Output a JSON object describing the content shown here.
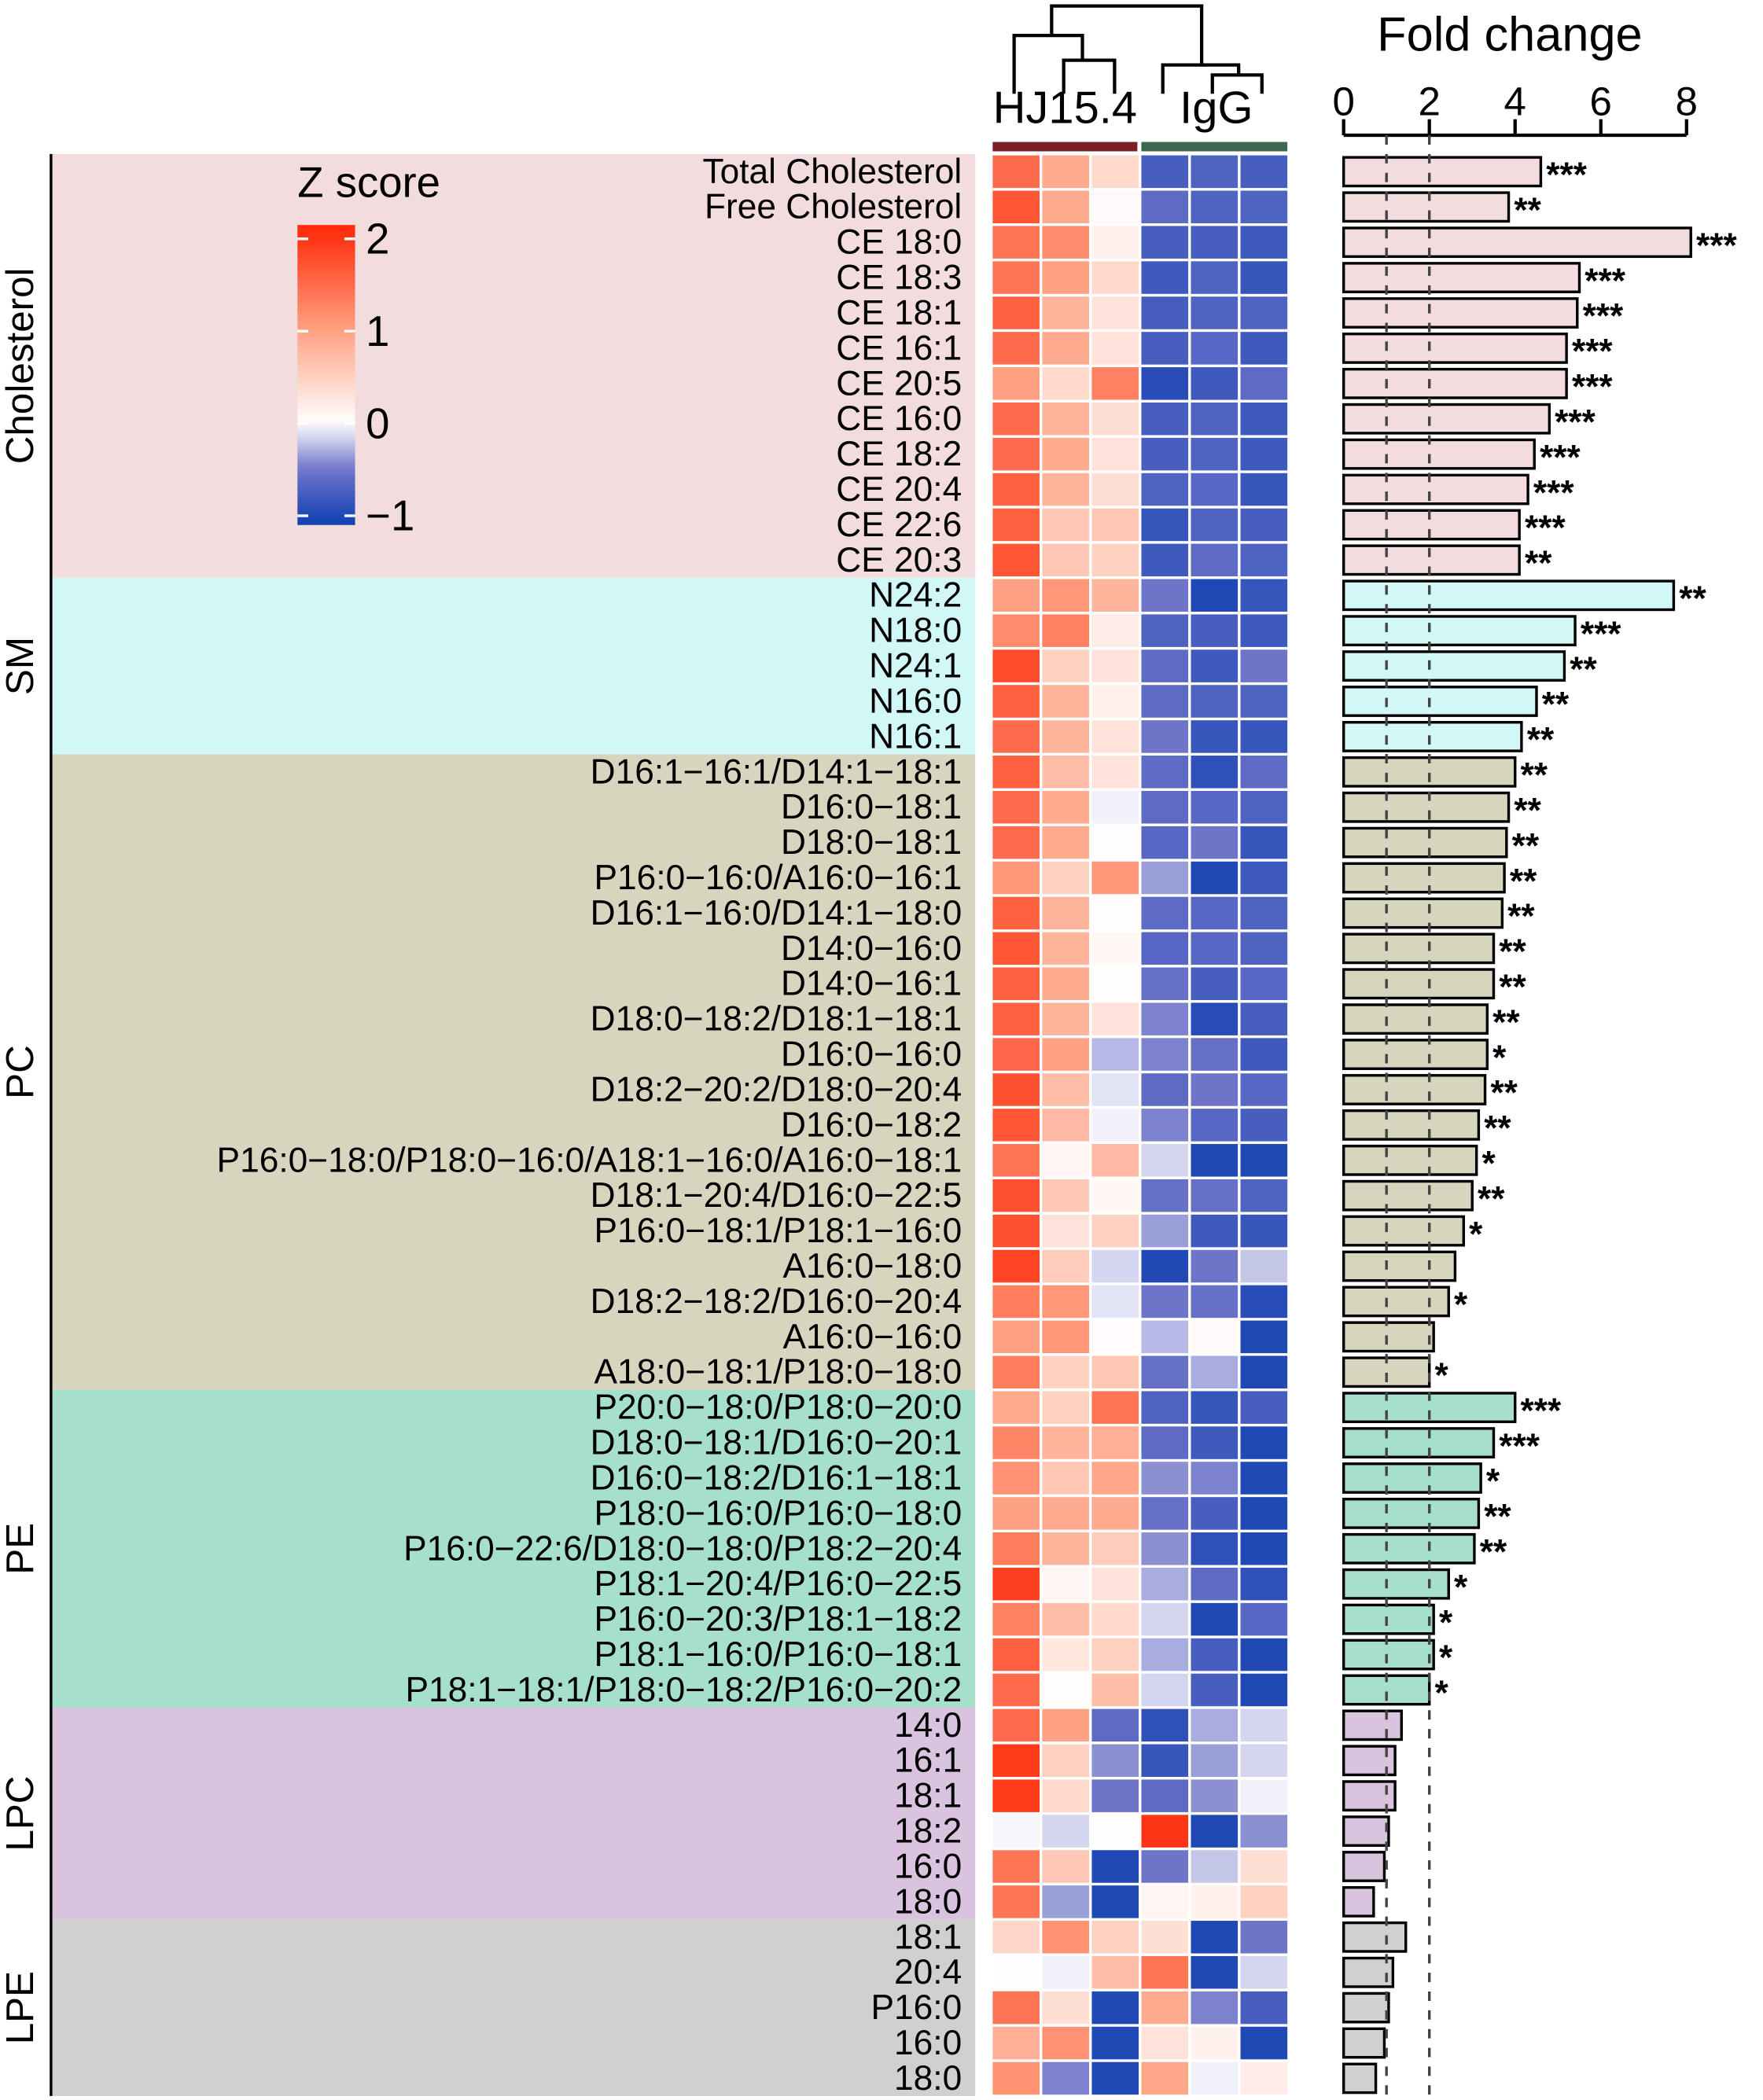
{
  "chart_data": [
    {
      "type": "heatmap",
      "title": "",
      "column_groups": [
        {
          "label": "HJ15.4",
          "color": "#7a1f24",
          "n": 3
        },
        {
          "label": "IgG",
          "color": "#3e6650",
          "n": 3
        }
      ],
      "dendrogram": "columns clustered: HJ15.4 (1,(2,3)), IgG (4,(5,6))",
      "legend": {
        "title": "Z score",
        "ticks": [
          "2",
          "1",
          "0",
          "−1"
        ],
        "tick_values": [
          2,
          1,
          0,
          -1
        ],
        "range": [
          -1.1,
          2.15
        ],
        "colors": [
          "#1040b2",
          "#6e74c8",
          "#ffffff",
          "#ffa283",
          "#ff2a0a"
        ]
      },
      "groups": [
        {
          "label": "Cholesterol",
          "color": "#f2dcdd",
          "rows": [
            {
              "label": "Total Cholesterol",
              "z": [
                1.5,
                0.9,
                0.4,
                -0.75,
                -0.7,
                -0.75
              ]
            },
            {
              "label": "Free Cholesterol",
              "z": [
                1.7,
                0.9,
                0.05,
                -0.6,
                -0.7,
                -0.7
              ]
            },
            {
              "label": "CE 18:0",
              "z": [
                1.4,
                1.2,
                0.15,
                -0.75,
                -0.75,
                -0.8
              ]
            },
            {
              "label": "CE 18:3",
              "z": [
                1.4,
                1.0,
                0.4,
                -0.8,
                -0.7,
                -0.85
              ]
            },
            {
              "label": "CE 18:1",
              "z": [
                1.6,
                0.8,
                0.3,
                -0.75,
                -0.7,
                -0.7
              ]
            },
            {
              "label": "CE 16:1",
              "z": [
                1.5,
                0.9,
                0.3,
                -0.75,
                -0.65,
                -0.8
              ]
            },
            {
              "label": "CE 20:5",
              "z": [
                1.0,
                0.4,
                1.3,
                -0.95,
                -0.8,
                -0.6
              ]
            },
            {
              "label": "CE 16:0",
              "z": [
                1.5,
                0.8,
                0.35,
                -0.75,
                -0.7,
                -0.8
              ]
            },
            {
              "label": "CE 18:2",
              "z": [
                1.5,
                0.9,
                0.3,
                -0.75,
                -0.7,
                -0.8
              ]
            },
            {
              "label": "CE 20:4",
              "z": [
                1.6,
                0.8,
                0.35,
                -0.7,
                -0.65,
                -0.85
              ]
            },
            {
              "label": "CE 22:6",
              "z": [
                1.6,
                0.6,
                0.6,
                -0.85,
                -0.7,
                -0.75
              ]
            },
            {
              "label": "CE 20:3",
              "z": [
                1.7,
                0.6,
                0.5,
                -0.8,
                -0.6,
                -0.7
              ]
            }
          ]
        },
        {
          "label": "SM",
          "color": "#d1f7f6",
          "rows": [
            {
              "label": "N24:2",
              "z": [
                1.0,
                1.1,
                0.8,
                -0.5,
                -1.0,
                -0.85
              ]
            },
            {
              "label": "N18:0",
              "z": [
                1.2,
                1.3,
                0.2,
                -0.7,
                -0.75,
                -0.8
              ]
            },
            {
              "label": "N24:1",
              "z": [
                1.8,
                0.5,
                0.3,
                -0.6,
                -0.8,
                -0.5
              ]
            },
            {
              "label": "N16:0",
              "z": [
                1.6,
                0.8,
                0.15,
                -0.6,
                -0.7,
                -0.7
              ]
            },
            {
              "label": "N16:1",
              "z": [
                1.5,
                0.8,
                0.3,
                -0.5,
                -0.85,
                -0.85
              ]
            }
          ]
        },
        {
          "label": "PC",
          "color": "#d8d5bf",
          "rows": [
            {
              "label": "D16:1−16:1/D14:1−18:1",
              "z": [
                1.6,
                0.7,
                0.3,
                -0.6,
                -0.9,
                -0.6
              ]
            },
            {
              "label": "D16:0−18:1",
              "z": [
                1.5,
                0.9,
                -0.05,
                -0.6,
                -0.65,
                -0.7
              ]
            },
            {
              "label": "D18:0−18:1",
              "z": [
                1.5,
                0.9,
                0.02,
                -0.65,
                -0.5,
                -0.85
              ]
            },
            {
              "label": "P16:0−16:0/A16:0−16:1",
              "z": [
                1.1,
                0.5,
                1.1,
                -0.35,
                -1.0,
                -0.8
              ]
            },
            {
              "label": "D16:1−16:0/D14:1−18:0",
              "z": [
                1.6,
                0.8,
                0.02,
                -0.6,
                -0.65,
                -0.7
              ]
            },
            {
              "label": "D14:0−16:0",
              "z": [
                1.7,
                0.8,
                0.08,
                -0.65,
                -0.65,
                -0.7
              ]
            },
            {
              "label": "D14:0−16:1",
              "z": [
                1.6,
                0.9,
                0.02,
                -0.55,
                -0.75,
                -0.65
              ]
            },
            {
              "label": "D18:0−18:2/D18:1−18:1",
              "z": [
                1.6,
                0.8,
                0.3,
                -0.45,
                -0.95,
                -0.75
              ]
            },
            {
              "label": "D16:0−16:0",
              "z": [
                1.55,
                1.0,
                -0.25,
                -0.45,
                -0.55,
                -0.8
              ]
            },
            {
              "label": "D18:2−20:2/D18:0−20:4",
              "z": [
                1.75,
                0.7,
                -0.1,
                -0.6,
                -0.5,
                -0.65
              ]
            },
            {
              "label": "D16:0−18:2",
              "z": [
                1.7,
                0.75,
                -0.05,
                -0.45,
                -0.65,
                -0.75
              ]
            },
            {
              "label": "P16:0−18:0/P18:0−16:0/A18:1−16:0/A16:0−18:1",
              "z": [
                1.4,
                0.1,
                0.75,
                -0.15,
                -1.0,
                -1.0
              ]
            },
            {
              "label": "D18:1−20:4/D16:0−22:5",
              "z": [
                1.75,
                0.6,
                0.08,
                -0.55,
                -0.55,
                -0.7
              ]
            },
            {
              "label": "P16:0−18:1/P18:1−16:0",
              "z": [
                1.75,
                0.3,
                0.5,
                -0.35,
                -0.8,
                -0.85
              ]
            },
            {
              "label": "A16:0−18:0",
              "z": [
                1.85,
                0.55,
                -0.15,
                -1.0,
                -0.5,
                -0.2
              ]
            },
            {
              "label": "D18:2−18:2/D16:0−20:4",
              "z": [
                1.35,
                1.1,
                -0.1,
                -0.5,
                -0.55,
                -0.95
              ]
            },
            {
              "label": "A16:0−16:0",
              "z": [
                1.0,
                1.1,
                0.03,
                -0.25,
                0.05,
                -1.0
              ]
            },
            {
              "label": "A18:0−18:1/P18:0−18:0",
              "z": [
                1.35,
                0.5,
                0.6,
                -0.55,
                -0.3,
                -1.0
              ]
            }
          ]
        },
        {
          "label": "PE",
          "color": "#a6e0cb",
          "rows": [
            {
              "label": "P20:0−18:0/P18:0−20:0",
              "z": [
                0.9,
                0.5,
                1.4,
                -0.7,
                -0.85,
                -0.75
              ]
            },
            {
              "label": "D18:0−18:1/D16:0−20:1",
              "z": [
                1.25,
                0.8,
                0.85,
                -0.6,
                -0.8,
                -1.0
              ]
            },
            {
              "label": "D16:0−18:2/D16:1−18:1",
              "z": [
                1.15,
                0.6,
                0.95,
                -0.4,
                -0.45,
                -1.0
              ]
            },
            {
              "label": "P18:0−16:0/P16:0−18:0",
              "z": [
                1.0,
                0.9,
                0.9,
                -0.55,
                -0.75,
                -1.0
              ]
            },
            {
              "label": "P16:0−22:6/D18:0−18:0/P18:2−20:4",
              "z": [
                1.35,
                0.8,
                0.55,
                -0.4,
                -0.9,
                -1.0
              ]
            },
            {
              "label": "P18:1−20:4/P16:0−22:5",
              "z": [
                1.9,
                0.1,
                0.3,
                -0.3,
                -0.6,
                -0.9
              ]
            },
            {
              "label": "P16:0−20:3/P18:1−18:2",
              "z": [
                1.3,
                0.7,
                0.4,
                -0.15,
                -1.0,
                -0.65
              ]
            },
            {
              "label": "P18:1−16:0/P16:0−18:1",
              "z": [
                1.6,
                0.25,
                0.5,
                -0.3,
                -0.75,
                -1.0
              ]
            },
            {
              "label": "P18:1−18:1/P18:0−18:2/P16:0−20:2",
              "z": [
                1.5,
                0.02,
                0.7,
                -0.15,
                -0.75,
                -1.0
              ]
            }
          ]
        },
        {
          "label": "LPC",
          "color": "#d9c3de",
          "rows": [
            {
              "label": "14:0",
              "z": [
                1.5,
                1.0,
                -0.6,
                -0.9,
                -0.3,
                -0.15
              ]
            },
            {
              "label": "16:1",
              "z": [
                1.95,
                0.5,
                -0.4,
                -0.85,
                -0.35,
                -0.15
              ]
            },
            {
              "label": "18:1",
              "z": [
                1.95,
                0.4,
                -0.5,
                -0.6,
                -0.4,
                -0.05
              ]
            },
            {
              "label": "18:2",
              "z": [
                -0.03,
                -0.15,
                0.02,
                2.0,
                -1.0,
                -0.4
              ]
            },
            {
              "label": "16:0",
              "z": [
                1.4,
                0.6,
                -1.0,
                -0.5,
                -0.2,
                0.35
              ]
            },
            {
              "label": "18:0",
              "z": [
                1.4,
                -0.35,
                -1.0,
                0.1,
                0.15,
                0.5
              ]
            }
          ]
        },
        {
          "label": "LPE",
          "color": "#d0d0d0",
          "rows": [
            {
              "label": "18:1",
              "z": [
                0.45,
                1.15,
                0.5,
                0.35,
                -1.0,
                -0.5
              ]
            },
            {
              "label": "20:4",
              "z": [
                0.02,
                -0.05,
                0.7,
                1.4,
                -1.0,
                -0.15
              ]
            },
            {
              "label": "P16:0",
              "z": [
                1.4,
                0.35,
                -1.0,
                0.9,
                -0.45,
                -0.75
              ]
            },
            {
              "label": "16:0",
              "z": [
                0.85,
                1.15,
                -1.0,
                0.3,
                0.15,
                -1.0
              ]
            },
            {
              "label": "18:0",
              "z": [
                1.15,
                -0.45,
                -1.0,
                0.95,
                -0.05,
                0.2
              ]
            }
          ]
        }
      ]
    },
    {
      "type": "bar",
      "orientation": "horizontal",
      "title": "Fold change",
      "xlim": [
        0,
        8
      ],
      "xticks": [
        "0",
        "2",
        "4",
        "6",
        "8"
      ],
      "reference_lines": [
        1,
        2
      ],
      "values": [
        4.6,
        3.85,
        8.1,
        5.5,
        5.45,
        5.2,
        5.2,
        4.8,
        4.45,
        4.3,
        4.1,
        4.1,
        7.7,
        5.4,
        5.15,
        4.5,
        4.15,
        4.0,
        3.85,
        3.8,
        3.75,
        3.7,
        3.5,
        3.5,
        3.35,
        3.35,
        3.3,
        3.15,
        3.1,
        3.0,
        2.8,
        2.6,
        2.45,
        2.1,
        2.0,
        4.0,
        3.5,
        3.2,
        3.15,
        3.05,
        2.45,
        2.1,
        2.1,
        2.0,
        1.35,
        1.2,
        1.2,
        1.05,
        0.95,
        0.7,
        1.45,
        1.15,
        1.05,
        0.95,
        0.75
      ],
      "significance": [
        "***",
        "**",
        "***",
        "***",
        "***",
        "***",
        "***",
        "***",
        "***",
        "***",
        "***",
        "**",
        "**",
        "***",
        "**",
        "**",
        "**",
        "**",
        "**",
        "**",
        "**",
        "**",
        "**",
        "**",
        "**",
        "*",
        "**",
        "**",
        "*",
        "**",
        "*",
        "",
        "*",
        "",
        "*",
        "***",
        "***",
        "*",
        "**",
        "**",
        "*",
        "*",
        "*",
        "*",
        "",
        "",
        "",
        "",
        "",
        "",
        "",
        "",
        "",
        "",
        ""
      ]
    }
  ]
}
